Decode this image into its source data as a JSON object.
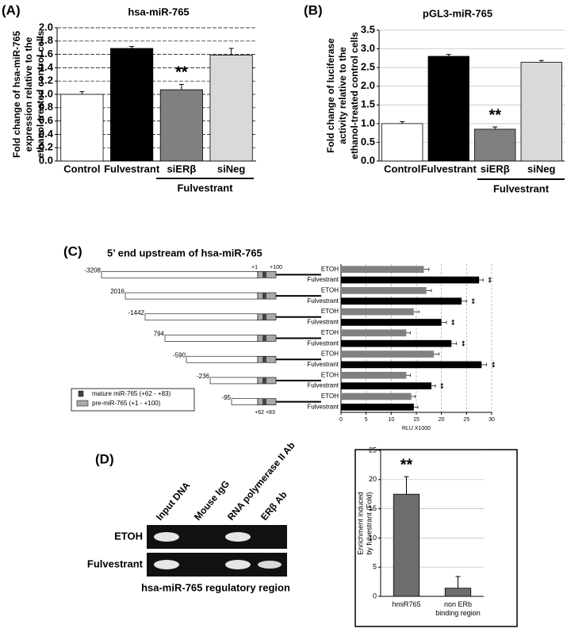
{
  "figure": {
    "panel_labels": [
      "(A)",
      "(B)",
      "(C)",
      "(D)"
    ],
    "constructs": {
      "starts": [
        "-3208",
        "2016",
        "-1442",
        "794",
        "-590",
        "-236",
        "-95"
      ],
      "plus1": "+1",
      "plus100": "+100",
      "mature_pos": "+62 +83",
      "legend": [
        "mature miR-765 (+62 - +83)",
        "pre-miR-765 (+1 - +100)"
      ]
    },
    "gel": {
      "lanes": [
        "Input DNA",
        "Mouse IgG",
        "RNA polymerase II Ab",
        "ERβ Ab"
      ],
      "rows": [
        "ETOH",
        "Fulvestrant"
      ],
      "caption": "hsa-miR-765 regulatory region"
    }
  },
  "chart_data": [
    {
      "type": "bar",
      "title": "hsa-miR-765",
      "ylabel": [
        "Fold change of hsa-miR-765",
        "expression relative to the",
        "ethanol-treated control cells"
      ],
      "categories": [
        "Control",
        "Fulvestrant",
        "siERβ",
        "siNeg"
      ],
      "values": [
        1.0,
        1.69,
        1.07,
        1.59
      ],
      "errors": [
        0.04,
        0.03,
        0.08,
        0.1
      ],
      "colors": [
        "#ffffff",
        "#000000",
        "#808080",
        "#d9d9d9"
      ],
      "annotations": [
        null,
        null,
        "**",
        null
      ],
      "group_label": "Fulvestrant",
      "ylim": [
        0,
        2
      ],
      "yticks": [
        {
          "value": 0,
          "label": "0.0"
        },
        0.2,
        0.4,
        0.6,
        0.8,
        {
          "value": 1,
          "label": "1.0"
        },
        1.2,
        1.4,
        1.6,
        1.8,
        {
          "value": 2,
          "label": "2.0"
        }
      ],
      "grid": true
    },
    {
      "type": "bar",
      "title": "pGL3-miR-765",
      "ylabel": [
        "Fold change of luciferase",
        "activity relative to the",
        "ethanol-treated control cells"
      ],
      "categories": [
        "Control",
        "Fulvestrant",
        "siERβ",
        "siNeg"
      ],
      "values": [
        1.0,
        2.8,
        0.85,
        2.64
      ],
      "errors": [
        0.05,
        0.05,
        0.06,
        0.05
      ],
      "colors": [
        "#ffffff",
        "#000000",
        "#808080",
        "#d9d9d9"
      ],
      "annotations": [
        null,
        null,
        "**",
        null
      ],
      "group_label": "Fulvestrant",
      "ylim": [
        0,
        3.5
      ],
      "yticks": [
        {
          "value": 0,
          "label": "0.0"
        },
        0.5,
        {
          "value": 1,
          "label": "1.0"
        },
        1.5,
        {
          "value": 2,
          "label": "2.0"
        },
        2.5,
        {
          "value": 3,
          "label": "3.0"
        },
        3.5
      ],
      "grid": true
    },
    {
      "type": "hbar",
      "title": "5’ end upstream of hsa-miR-765",
      "xlabel": "RLU X1000",
      "categories": [
        "ETOH",
        "Fulvestrant",
        "ETOH",
        "Fulvestrant",
        "ETOH",
        "Fulvestrant",
        "ETOH",
        "Fulvestrant",
        "ETOH",
        "Fulvestrant",
        "ETOH",
        "Fulvestrant",
        "ETOH",
        "Fulvestrant"
      ],
      "values": [
        16.5,
        27.5,
        17,
        24,
        14.5,
        20,
        13,
        22,
        18.5,
        28,
        13,
        18,
        14,
        14.5
      ],
      "errors": [
        1,
        0.8,
        1,
        1,
        1,
        1,
        0.8,
        1,
        1,
        1,
        0.8,
        0.8,
        0.8,
        0.8
      ],
      "colors": [
        "#808080",
        "#000000",
        "#808080",
        "#000000",
        "#808080",
        "#000000",
        "#808080",
        "#000000",
        "#808080",
        "#000000",
        "#808080",
        "#000000",
        "#808080",
        "#000000"
      ],
      "annotations": [
        null,
        "**",
        null,
        "**",
        null,
        "**",
        null,
        "**",
        null,
        "**",
        null,
        "**",
        null,
        null
      ],
      "xlim": [
        0,
        30
      ],
      "xticks": [
        0,
        5,
        10,
        15,
        20,
        25,
        30
      ],
      "grid": true
    },
    {
      "type": "bar",
      "ylabel": [
        "Enrichment induced",
        "by fulvestrant (Fold)"
      ],
      "categories": [
        "hmiR765",
        "non ERb binding region"
      ],
      "values": [
        17.5,
        1.4
      ],
      "errors": [
        3,
        2
      ],
      "colors": [
        "#6d6d6d",
        "#6d6d6d"
      ],
      "annotations": [
        "**",
        null
      ],
      "ylim": [
        0,
        25
      ],
      "yticks": [
        0,
        5,
        10,
        15,
        20,
        25
      ],
      "grid": true
    }
  ]
}
